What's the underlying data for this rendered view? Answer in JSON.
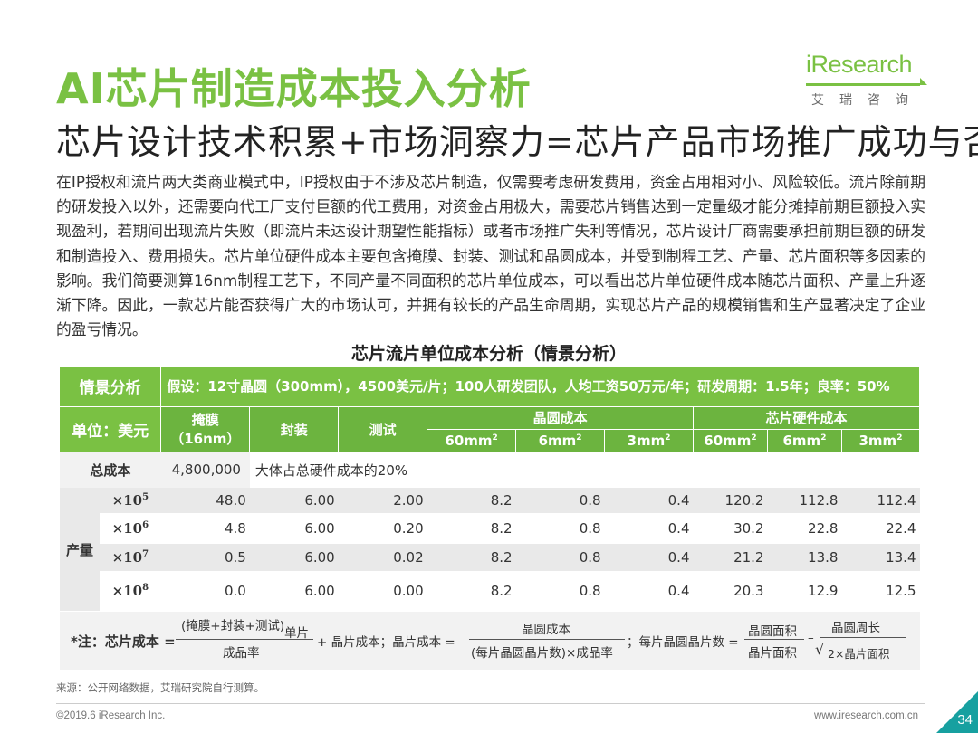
{
  "title": "AI芯片制造成本投入分析",
  "subtitle": "芯片设计技术积累+市场洞察力=芯片产品市场推广成功与否",
  "logo": {
    "word_i": "i",
    "word_rest": "Research",
    "sub": "艾瑞咨询"
  },
  "paragraph": "在IP授权和流片两大类商业模式中，IP授权由于不涉及芯片制造，仅需要考虑研发费用，资金占用相对小、风险较低。流片除前期的研发投入以外，还需要向代工厂支付巨额的代工费用，对资金占用极大，需要芯片销售达到一定量级才能分摊掉前期巨额投入实现盈利，若期间出现流片失败（即流片未达设计期望性能指标）或者市场推广失利等情况，芯片设计厂商需要承担前期巨额的研发和制造投入、费用损失。芯片单位硬件成本主要包含掩膜、封装、测试和晶圆成本，并受到制程工艺、产量、芯片面积等多因素的影响。我们简要测算16nm制程工艺下，不同产量不同面积的芯片单位成本，可以看出芯片单位硬件成本随芯片面积、产量上升逐渐下降。因此，一款芯片能否获得广大的市场认可，并拥有较长的产品生命周期，实现芯片产品的规模销售和生产显著决定了企业的盈亏情况。",
  "table": {
    "title": "芯片流片单位成本分析（情景分析）",
    "scenario_label": "情景分析",
    "assumption": "假设：12寸晶圆（300mm），4500美元/片；100人研发团队，人均工资50万元/年；研发周期：1.5年；良率：50%",
    "unit_label": "单位：美元",
    "col_mask": "掩膜",
    "col_mask_sub": "（16nm）",
    "col_pack": "封装",
    "col_test": "测试",
    "col_wafer": "晶圆成本",
    "col_hw": "芯片硬件成本",
    "area_units": [
      "60mm",
      "6mm",
      "3mm"
    ],
    "area_exp": "2",
    "total_label": "总成本",
    "total_value": "4,800,000",
    "total_note": "大体占总硬件成本的20%",
    "volume_label": "产量",
    "mag_base": "×10",
    "rows": [
      {
        "exp": "5",
        "values": [
          "48.0",
          "6.00",
          "2.00",
          "8.2",
          "0.8",
          "0.4",
          "120.2",
          "112.8",
          "112.4"
        ]
      },
      {
        "exp": "6",
        "values": [
          "4.8",
          "6.00",
          "0.20",
          "8.2",
          "0.8",
          "0.4",
          "30.2",
          "22.8",
          "22.4"
        ]
      },
      {
        "exp": "7",
        "values": [
          "0.5",
          "6.00",
          "0.02",
          "8.2",
          "0.8",
          "0.4",
          "21.2",
          "13.8",
          "13.4"
        ]
      },
      {
        "exp": "8",
        "values": [
          "0.0",
          "6.00",
          "0.00",
          "8.2",
          "0.8",
          "0.4",
          "20.3",
          "12.9",
          "12.5"
        ]
      }
    ]
  },
  "note": {
    "label": "*注：芯片成本 =",
    "f1_num": "(掩膜+封装+测试)",
    "f1_num_sub": "单片",
    "f1_den": "成品率",
    "f1_tail": "+ 晶片成本；晶片成本 =",
    "f2_num": "晶圆成本",
    "f2_den": "(每片晶圆晶片数)×成品率",
    "f2_tail": "；每片晶圆晶片数 =",
    "f3_num": "晶圆面积",
    "f3_den": "晶片面积",
    "f3_minus": "–",
    "f4_num": "晶圆周长",
    "f4_den": "2×晶片面积"
  },
  "source": "来源：公开网络数据，艾瑞研究院自行测算。",
  "copyright": "©2019.6 iResearch Inc.",
  "url": "www.iresearch.com.cn",
  "page_number": "34"
}
